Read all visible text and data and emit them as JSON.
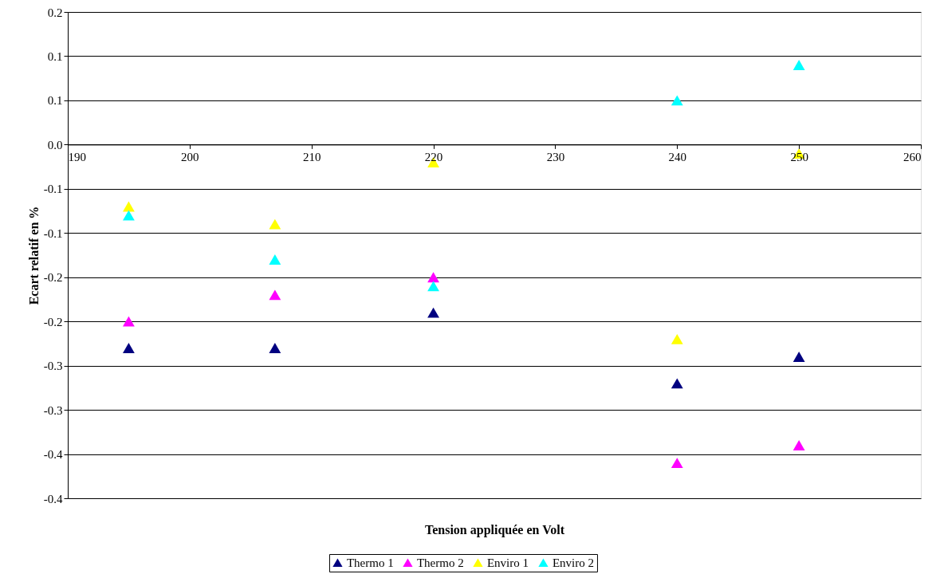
{
  "chart_data": {
    "type": "scatter",
    "xlabel": "Tension appliquée en Volt",
    "ylabel": "Ecart relatif en %",
    "x": [
      195,
      207,
      220,
      240,
      250
    ],
    "series": [
      {
        "name": "Thermo 1",
        "color": "#000080",
        "values": [
          -0.23,
          -0.23,
          -0.19,
          -0.27,
          -0.24
        ]
      },
      {
        "name": "Thermo 2",
        "color": "#ff00ff",
        "values": [
          -0.2,
          -0.17,
          -0.15,
          -0.36,
          -0.34
        ]
      },
      {
        "name": "Enviro 1",
        "color": "#ffff00",
        "values": [
          -0.07,
          -0.09,
          -0.02,
          -0.22,
          -0.01
        ]
      },
      {
        "name": "Enviro 2",
        "color": "#00ffff",
        "values": [
          -0.08,
          -0.13,
          -0.16,
          0.05,
          0.09
        ]
      }
    ],
    "xlim": [
      190,
      260
    ],
    "xticks": [
      190,
      200,
      210,
      220,
      230,
      240,
      250,
      260
    ],
    "ylim": [
      -0.4,
      0.15
    ],
    "yticks": [
      {
        "value": -0.4,
        "label": "-0.4"
      },
      {
        "value": -0.35,
        "label": "-0.4"
      },
      {
        "value": -0.3,
        "label": "-0.3"
      },
      {
        "value": -0.25,
        "label": "-0.3"
      },
      {
        "value": -0.2,
        "label": "-0.2"
      },
      {
        "value": -0.15,
        "label": "-0.2"
      },
      {
        "value": -0.1,
        "label": "-0.1"
      },
      {
        "value": -0.05,
        "label": "-0.1"
      },
      {
        "value": 0,
        "label": "0.0"
      },
      {
        "value": 0.05,
        "label": "0.1"
      },
      {
        "value": 0.1,
        "label": "0.1"
      },
      {
        "value": 0.15,
        "label": "0.2"
      }
    ],
    "grid": "y",
    "legend": "bottom",
    "marker": "triangle"
  }
}
